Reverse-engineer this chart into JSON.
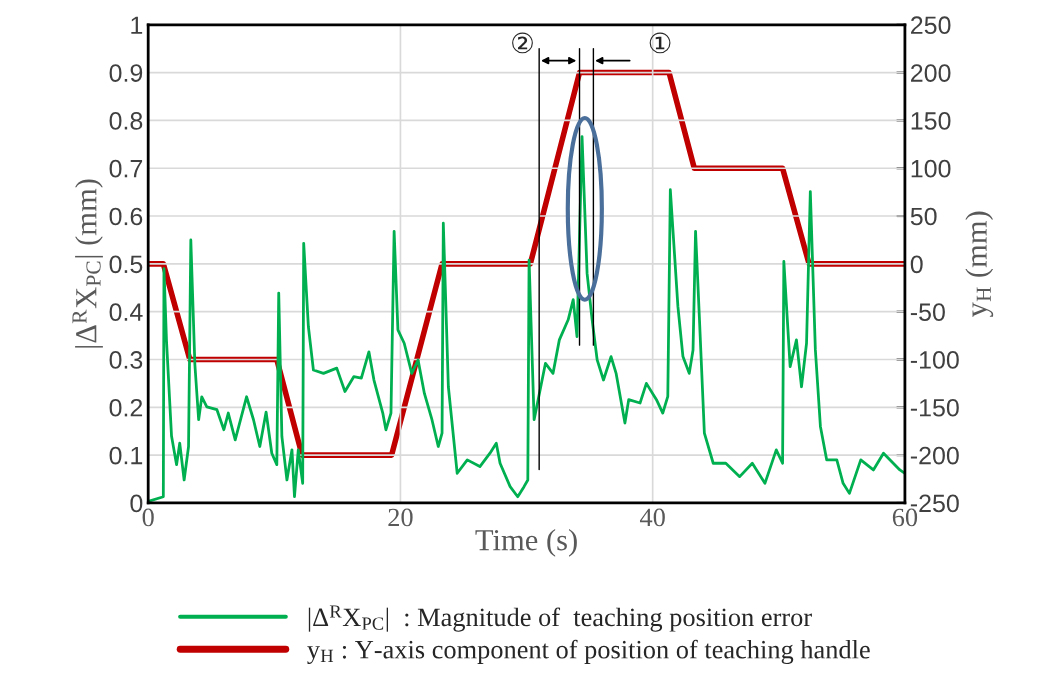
{
  "chart_data": {
    "type": "line",
    "xlabel": "Time (s)",
    "ylabel": "|Δ$^{R}$X$_{PC}$| (mm)",
    "y2label": "y$_{H}$ (mm)",
    "xlim": [
      0,
      60
    ],
    "xticks": [
      0,
      20,
      40,
      60
    ],
    "ylim": [
      0,
      1
    ],
    "yticks": [
      0,
      0.1,
      0.2,
      0.3,
      0.4,
      0.5,
      0.6,
      0.7,
      0.8,
      0.9,
      1
    ],
    "y2lim": [
      -250,
      250
    ],
    "y2ticks": [
      -250,
      -200,
      -150,
      -100,
      -50,
      0,
      50,
      100,
      150,
      200,
      250
    ],
    "grid": true,
    "legend": "bottom",
    "annotations": [
      {
        "text": "②",
        "x": 31.0,
        "y": 0.925
      },
      {
        "text": "①",
        "x": 35.3,
        "y": 0.925
      }
    ],
    "ref_lines": [
      {
        "axis": "x",
        "value": 31.0,
        "color": "#000000"
      },
      {
        "axis": "x",
        "value": 34.2,
        "color": "#000000"
      },
      {
        "axis": "x",
        "value": 35.3,
        "color": "#000000"
      }
    ],
    "series": [
      {
        "name": "|Δ$^{R}$X$_{PC}$|  : Magnitude of  teaching position error",
        "color": "#00b050",
        "x": [
          0.0,
          1.2,
          1.25,
          1.45,
          1.85,
          2.25,
          2.5,
          2.85,
          3.2,
          3.38,
          3.7,
          4.0,
          4.25,
          4.65,
          5.45,
          6.0,
          6.35,
          6.9,
          7.8,
          8.35,
          8.85,
          9.35,
          9.8,
          10.2,
          10.35,
          10.6,
          11.0,
          11.4,
          11.6,
          11.9,
          12.25,
          12.33,
          12.7,
          13.1,
          13.9,
          14.95,
          15.6,
          16.3,
          16.9,
          17.5,
          17.9,
          18.6,
          18.85,
          19.25,
          19.5,
          19.8,
          20.3,
          20.9,
          21.4,
          21.9,
          22.5,
          23.0,
          23.3,
          23.4,
          23.8,
          24.5,
          25.3,
          26.3,
          27.1,
          27.6,
          27.9,
          28.7,
          29.3,
          29.8,
          30.1,
          30.2,
          30.6,
          31.5,
          32.1,
          32.6,
          33.3,
          33.7,
          34.0,
          34.4,
          34.8,
          35.2,
          35.6,
          36.1,
          36.7,
          37.1,
          37.8,
          38.1,
          39.0,
          39.5,
          40.3,
          40.8,
          41.2,
          41.4,
          42.0,
          42.4,
          42.9,
          43.2,
          43.4,
          43.7,
          44.1,
          44.8,
          45.8,
          46.9,
          47.9,
          48.9,
          49.8,
          50.3,
          50.4,
          50.9,
          51.4,
          51.8,
          52.2,
          52.5,
          52.9,
          53.3,
          53.8,
          54.6,
          55.1,
          55.6,
          56.5,
          57.5,
          58.3,
          59.6,
          60.0
        ],
        "values": [
          0.003,
          0.013,
          0.49,
          0.34,
          0.14,
          0.08,
          0.125,
          0.048,
          0.118,
          0.55,
          0.29,
          0.174,
          0.222,
          0.201,
          0.195,
          0.153,
          0.188,
          0.132,
          0.222,
          0.174,
          0.118,
          0.19,
          0.104,
          0.08,
          0.439,
          0.139,
          0.048,
          0.111,
          0.013,
          0.111,
          0.041,
          0.543,
          0.369,
          0.278,
          0.271,
          0.282,
          0.233,
          0.264,
          0.261,
          0.316,
          0.257,
          0.188,
          0.153,
          0.188,
          0.568,
          0.362,
          0.334,
          0.271,
          0.299,
          0.229,
          0.174,
          0.118,
          0.146,
          0.585,
          0.243,
          0.062,
          0.09,
          0.076,
          0.104,
          0.125,
          0.083,
          0.034,
          0.013,
          0.034,
          0.048,
          0.508,
          0.174,
          0.292,
          0.271,
          0.341,
          0.383,
          0.425,
          0.348,
          0.766,
          0.48,
          0.383,
          0.299,
          0.257,
          0.306,
          0.271,
          0.167,
          0.216,
          0.209,
          0.25,
          0.216,
          0.188,
          0.223,
          0.655,
          0.411,
          0.306,
          0.271,
          0.32,
          0.568,
          0.39,
          0.146,
          0.083,
          0.083,
          0.055,
          0.083,
          0.041,
          0.111,
          0.083,
          0.505,
          0.285,
          0.341,
          0.243,
          0.334,
          0.651,
          0.32,
          0.16,
          0.09,
          0.09,
          0.041,
          0.02,
          0.09,
          0.069,
          0.104,
          0.069,
          0.062
        ]
      },
      {
        "name": "y$_{H}$ : Y-axis component of position of teaching handle",
        "color": "#c00000",
        "axis": "y2",
        "x": [
          0,
          1.2,
          3.3,
          10.2,
          12.2,
          19.3,
          23.3,
          30.3,
          34.2,
          41.3,
          43.3,
          50.3,
          52.4,
          60
        ],
        "values": [
          0,
          0,
          -100,
          -100,
          -200,
          -200,
          0,
          0,
          200,
          200,
          100,
          100,
          0,
          0
        ]
      }
    ]
  }
}
